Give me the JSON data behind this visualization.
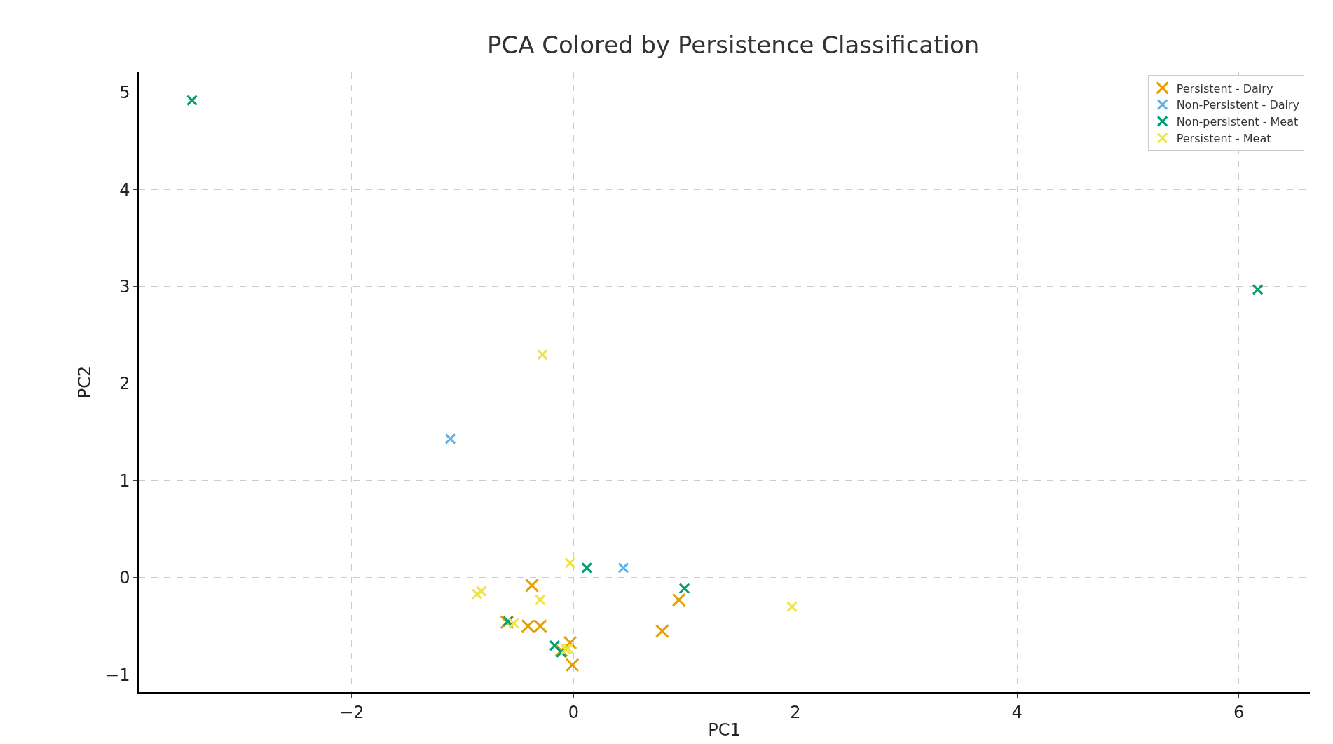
{
  "chart_data": {
    "type": "scatter",
    "title": "PCA Colored by Persistence Classification",
    "xlabel": "PC1",
    "ylabel": "PC2",
    "xlim": [
      -3.92,
      6.64
    ],
    "ylim": [
      -1.18,
      5.21
    ],
    "xticks": [
      {
        "value": -2,
        "label": "−2"
      },
      0,
      2,
      4,
      6
    ],
    "yticks": [
      {
        "value": -1,
        "label": "−1"
      },
      0,
      1,
      2,
      3,
      4,
      5
    ],
    "grid": true,
    "legend": "top right",
    "marker": "cross",
    "series": [
      {
        "name": "Persistent - Dairy",
        "color": "#e69f00",
        "x": [
          -0.375,
          -0.41,
          -0.3,
          -0.6,
          -0.03,
          -0.01,
          -0.11,
          0.95,
          0.8
        ],
        "values": [
          -0.08,
          -0.5,
          -0.5,
          -0.46,
          -0.67,
          -0.9,
          -0.75,
          -0.23,
          -0.55
        ]
      },
      {
        "name": "Non-Persistent - Dairy",
        "color": "#56b4e9",
        "x": [
          -1.11,
          0.45
        ],
        "values": [
          1.43,
          0.1
        ]
      },
      {
        "name": "Non-persistent - Meat",
        "color": "#009e73",
        "x": [
          -3.44,
          6.17,
          0.12,
          1.0,
          -0.59,
          -0.17,
          -0.11
        ],
        "values": [
          4.92,
          2.97,
          0.1,
          -0.11,
          -0.45,
          -0.7,
          -0.77
        ]
      },
      {
        "name": "Persistent - Meat",
        "color": "#f0e442",
        "x": [
          -0.28,
          -0.03,
          -0.87,
          -0.83,
          -0.3,
          -0.54,
          1.97,
          -0.07,
          -0.05
        ],
        "values": [
          2.3,
          0.15,
          -0.17,
          -0.14,
          -0.23,
          -0.47,
          -0.3,
          -0.74,
          -0.73
        ]
      }
    ]
  }
}
